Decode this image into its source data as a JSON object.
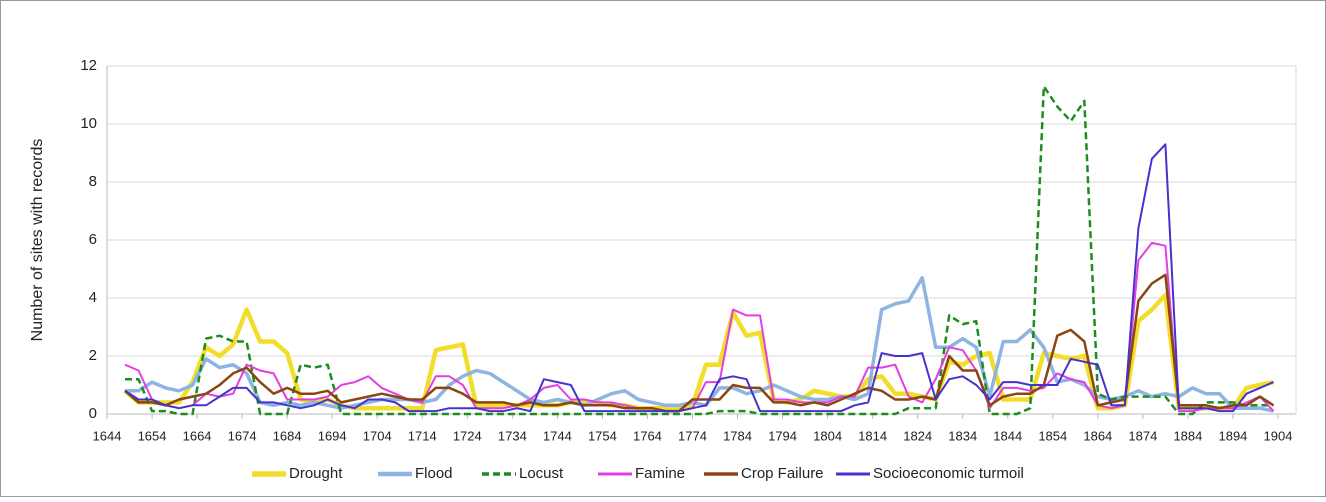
{
  "chart_data": {
    "type": "line",
    "ylabel": "Number of sites with records",
    "xlim": [
      1644,
      1908
    ],
    "xticks": [
      1644,
      1654,
      1664,
      1674,
      1684,
      1694,
      1704,
      1714,
      1724,
      1734,
      1744,
      1754,
      1764,
      1774,
      1784,
      1794,
      1804,
      1814,
      1824,
      1834,
      1844,
      1854,
      1864,
      1874,
      1884,
      1894,
      1904
    ],
    "ylim": [
      0,
      12
    ],
    "yticks": [
      0,
      2,
      4,
      6,
      8,
      10,
      12
    ],
    "grid": true,
    "legend": "bottom",
    "x": [
      1648,
      1651,
      1654,
      1657,
      1660,
      1663,
      1666,
      1669,
      1672,
      1675,
      1678,
      1681,
      1684,
      1687,
      1690,
      1693,
      1696,
      1699,
      1702,
      1705,
      1708,
      1711,
      1714,
      1717,
      1720,
      1723,
      1726,
      1729,
      1732,
      1735,
      1738,
      1741,
      1744,
      1747,
      1750,
      1753,
      1756,
      1759,
      1762,
      1765,
      1768,
      1771,
      1774,
      1777,
      1780,
      1783,
      1786,
      1789,
      1792,
      1795,
      1798,
      1801,
      1804,
      1807,
      1810,
      1813,
      1816,
      1819,
      1822,
      1825,
      1828,
      1831,
      1834,
      1837,
      1840,
      1843,
      1846,
      1849,
      1852,
      1855,
      1858,
      1861,
      1864,
      1867,
      1870,
      1873,
      1876,
      1879,
      1882,
      1885,
      1888,
      1891,
      1894,
      1897,
      1900,
      1903
    ],
    "series": [
      {
        "name": "Drought",
        "color": "#f2dd2a",
        "width": 4.5,
        "dashed": false,
        "values": [
          0.8,
          0.4,
          0.4,
          0.4,
          0.4,
          1.1,
          2.3,
          2.0,
          2.4,
          3.6,
          2.5,
          2.5,
          2.1,
          0.5,
          0.4,
          0.5,
          0.3,
          0.2,
          0.2,
          0.2,
          0.2,
          0.2,
          0.2,
          2.2,
          2.3,
          2.4,
          0.3,
          0.3,
          0.3,
          0.3,
          0.3,
          0.3,
          0.3,
          0.4,
          0.4,
          0.4,
          0.3,
          0.3,
          0.2,
          0.2,
          0.2,
          0.2,
          0.3,
          1.7,
          1.7,
          3.5,
          2.7,
          2.8,
          0.5,
          0.4,
          0.5,
          0.8,
          0.7,
          0.6,
          0.6,
          1.2,
          1.3,
          0.7,
          0.7,
          0.6,
          0.5,
          1.8,
          1.7,
          2.0,
          2.1,
          0.5,
          0.5,
          0.5,
          2.1,
          2.0,
          1.9,
          2.0,
          0.2,
          0.2,
          0.3,
          3.2,
          3.6,
          4.1,
          0.2,
          0.2,
          0.2,
          0.2,
          0.2,
          0.9,
          1.0,
          1.1
        ]
      },
      {
        "name": "Flood",
        "color": "#8db4e2",
        "width": 3.5,
        "dashed": false,
        "values": [
          0.8,
          0.8,
          1.1,
          0.9,
          0.8,
          1.0,
          1.9,
          1.6,
          1.7,
          1.4,
          0.4,
          0.3,
          0.4,
          0.3,
          0.4,
          0.3,
          0.2,
          0.3,
          0.4,
          0.5,
          0.5,
          0.5,
          0.4,
          0.5,
          1.0,
          1.3,
          1.5,
          1.4,
          1.1,
          0.8,
          0.5,
          0.4,
          0.5,
          0.4,
          0.3,
          0.5,
          0.7,
          0.8,
          0.5,
          0.4,
          0.3,
          0.3,
          0.4,
          0.3,
          0.9,
          0.9,
          0.7,
          0.8,
          1.0,
          0.8,
          0.6,
          0.5,
          0.5,
          0.6,
          0.5,
          0.7,
          3.6,
          3.8,
          3.9,
          4.7,
          2.3,
          2.3,
          2.6,
          2.3,
          0.6,
          2.5,
          2.5,
          2.9,
          2.3,
          1.1,
          1.2,
          1.0,
          0.6,
          0.5,
          0.6,
          0.8,
          0.6,
          0.7,
          0.6,
          0.9,
          0.7,
          0.7,
          0.2,
          0.2,
          0.2,
          0.1
        ]
      },
      {
        "name": "Locust",
        "color": "#1e8c1e",
        "width": 2.5,
        "dashed": true,
        "values": [
          1.2,
          1.2,
          0.1,
          0.1,
          0,
          0,
          2.6,
          2.7,
          2.5,
          2.5,
          0,
          0,
          0,
          1.7,
          1.6,
          1.7,
          0,
          0,
          0,
          0,
          0,
          0,
          0,
          0,
          0,
          0,
          0,
          0,
          0,
          0,
          0,
          0,
          0,
          0,
          0,
          0,
          0,
          0,
          0,
          0,
          0,
          0,
          0,
          0,
          0.1,
          0.1,
          0.1,
          0,
          0,
          0,
          0,
          0,
          0,
          0,
          0,
          0,
          0,
          0,
          0.2,
          0.2,
          0.2,
          3.4,
          3.1,
          3.2,
          0,
          0,
          0,
          0.2,
          11.3,
          10.6,
          10.1,
          10.8,
          0.7,
          0.5,
          0.6,
          0.6,
          0.6,
          0.6,
          0,
          0,
          0.4,
          0.4,
          0.4,
          0.3,
          0.3,
          0.3
        ]
      },
      {
        "name": "Famine",
        "color": "#e23fe2",
        "width": 2,
        "dashed": false,
        "values": [
          1.7,
          1.5,
          0.5,
          0.3,
          0.2,
          0.3,
          0.7,
          0.6,
          0.7,
          1.7,
          1.5,
          1.4,
          0.5,
          0.5,
          0.5,
          0.6,
          1.0,
          1.1,
          1.3,
          0.9,
          0.7,
          0.5,
          0.4,
          1.3,
          1.3,
          1.0,
          0.2,
          0.2,
          0.2,
          0.3,
          0.5,
          0.9,
          1.0,
          0.5,
          0.5,
          0.4,
          0.4,
          0.3,
          0.2,
          0.2,
          0.1,
          0.1,
          0.2,
          1.1,
          1.1,
          3.6,
          3.4,
          3.4,
          0.5,
          0.5,
          0.4,
          0.4,
          0.4,
          0.6,
          0.6,
          1.6,
          1.6,
          1.7,
          0.6,
          0.4,
          1.2,
          2.3,
          2.2,
          1.5,
          0.2,
          0.9,
          0.9,
          0.8,
          0.9,
          1.4,
          1.2,
          1.1,
          0.3,
          0.2,
          0.3,
          5.3,
          5.9,
          5.8,
          0.1,
          0.1,
          0.2,
          0.2,
          0.2,
          0.4,
          0.6,
          0.1
        ]
      },
      {
        "name": "Crop Failure",
        "color": "#8b4513",
        "width": 2.5,
        "dashed": false,
        "values": [
          0.8,
          0.4,
          0.4,
          0.3,
          0.5,
          0.6,
          0.7,
          1.0,
          1.4,
          1.6,
          1.1,
          0.7,
          0.9,
          0.7,
          0.7,
          0.8,
          0.4,
          0.5,
          0.6,
          0.7,
          0.6,
          0.5,
          0.5,
          0.9,
          0.9,
          0.7,
          0.4,
          0.4,
          0.4,
          0.3,
          0.4,
          0.3,
          0.3,
          0.4,
          0.3,
          0.3,
          0.3,
          0.2,
          0.2,
          0.2,
          0.1,
          0.1,
          0.5,
          0.5,
          0.5,
          1.0,
          0.9,
          0.9,
          0.4,
          0.4,
          0.3,
          0.4,
          0.3,
          0.5,
          0.7,
          0.9,
          0.8,
          0.5,
          0.5,
          0.6,
          0.5,
          2.0,
          1.5,
          1.5,
          0.3,
          0.6,
          0.7,
          0.7,
          1.0,
          2.7,
          2.9,
          2.5,
          0.3,
          0.4,
          0.5,
          3.9,
          4.5,
          4.8,
          0.3,
          0.3,
          0.3,
          0.2,
          0.3,
          0.3,
          0.6,
          0.3
        ]
      },
      {
        "name": "Socioeconomic turmoil",
        "color": "#4433cc",
        "width": 2,
        "dashed": false,
        "values": [
          0.8,
          0.5,
          0.5,
          0.3,
          0.2,
          0.3,
          0.3,
          0.6,
          0.9,
          0.9,
          0.4,
          0.4,
          0.3,
          0.2,
          0.3,
          0.5,
          0.3,
          0.2,
          0.5,
          0.5,
          0.4,
          0.1,
          0.1,
          0.1,
          0.2,
          0.2,
          0.2,
          0.1,
          0.1,
          0.2,
          0.1,
          1.2,
          1.1,
          1.0,
          0.1,
          0.1,
          0.1,
          0.1,
          0.1,
          0.1,
          0.1,
          0.1,
          0.2,
          0.3,
          1.2,
          1.3,
          1.2,
          0.1,
          0.1,
          0.1,
          0.1,
          0.1,
          0.1,
          0.1,
          0.3,
          0.4,
          2.1,
          2.0,
          2.0,
          2.1,
          0.5,
          1.2,
          1.3,
          1.0,
          0.5,
          1.1,
          1.1,
          1.0,
          1.0,
          1.0,
          1.9,
          1.8,
          1.7,
          0.3,
          0.3,
          6.4,
          8.8,
          9.3,
          0.2,
          0.2,
          0.2,
          0.1,
          0.1,
          0.7,
          0.9,
          1.1
        ]
      }
    ]
  }
}
